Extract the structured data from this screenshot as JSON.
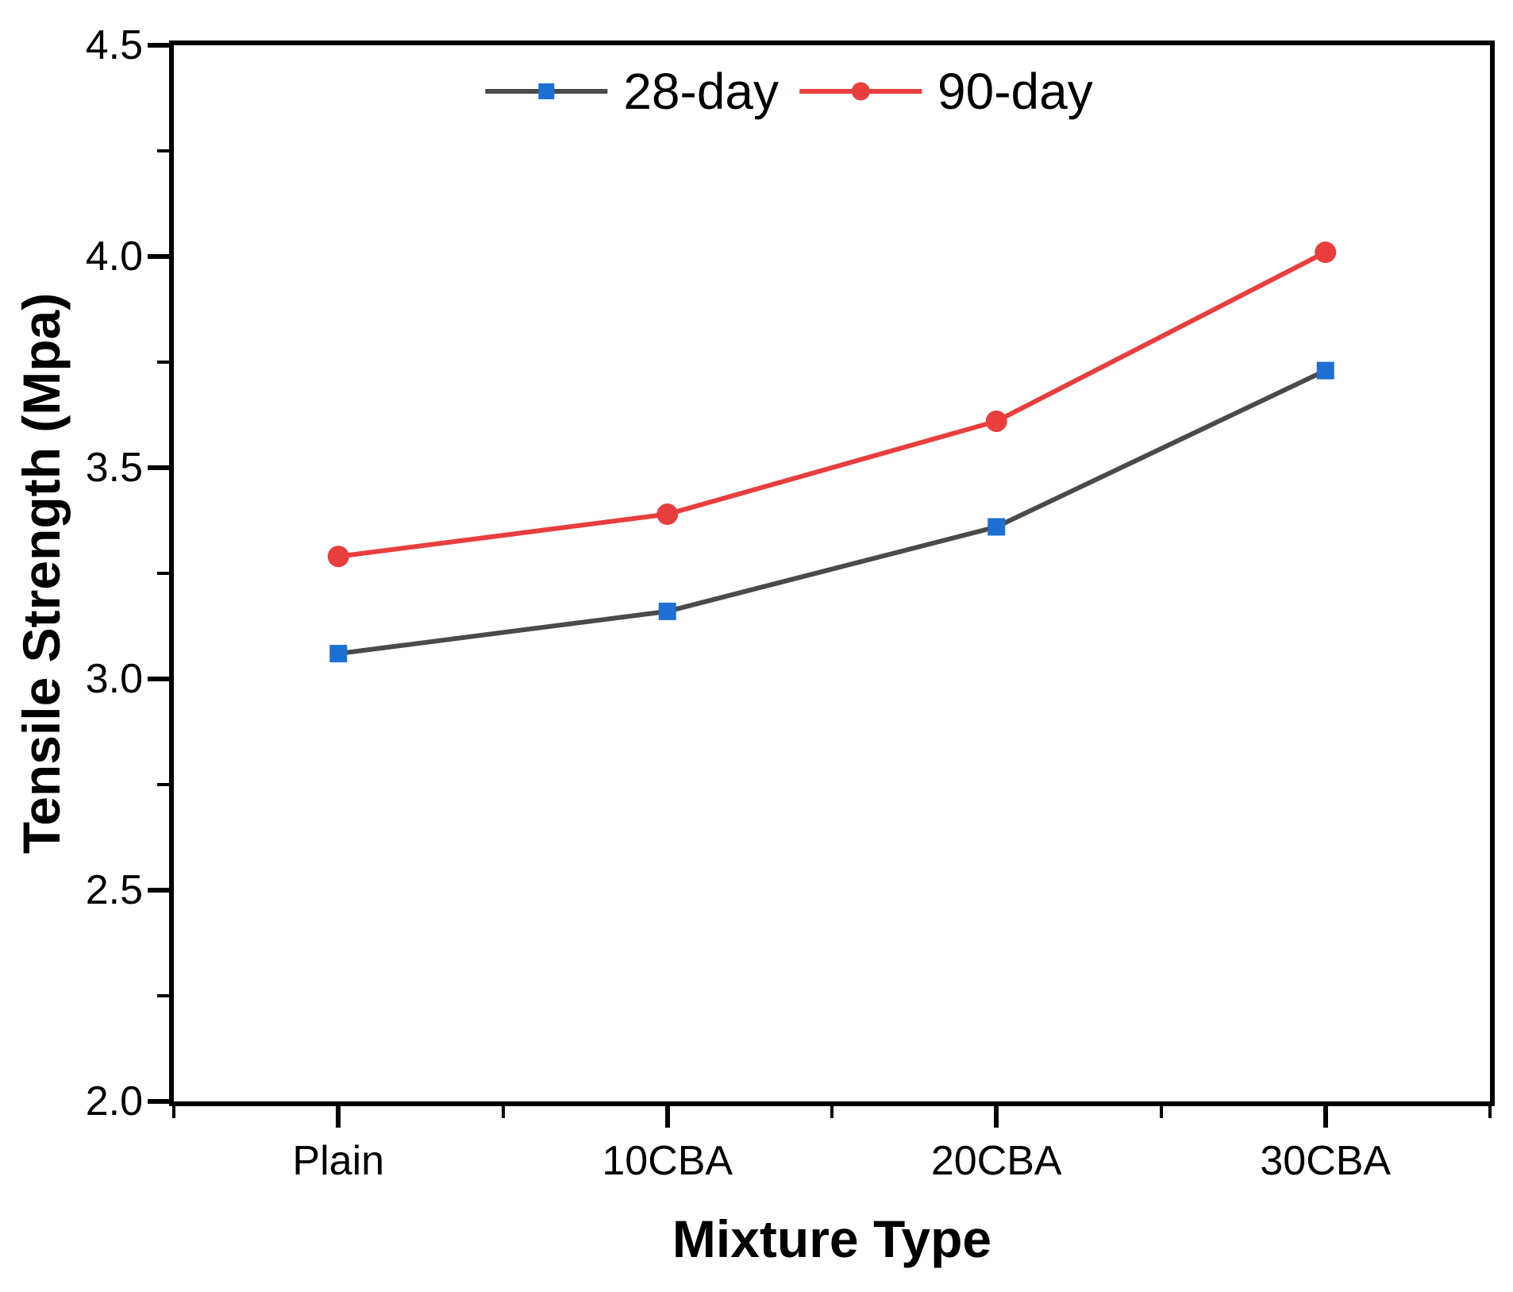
{
  "chart_data": {
    "type": "line",
    "title": "",
    "categories": [
      "Plain",
      "10CBA",
      "20CBA",
      "30CBA"
    ],
    "series": [
      {
        "name": "28-day",
        "values": [
          3.06,
          3.16,
          3.36,
          3.73
        ],
        "line_color": "#4a4a4a",
        "marker": "square",
        "marker_color": "#1d70d2"
      },
      {
        "name": "90-day",
        "values": [
          3.29,
          3.39,
          3.61,
          4.01
        ],
        "line_color": "#e83e3e",
        "marker": "circle",
        "marker_color": "#e83e3e"
      }
    ],
    "xlabel": "Mixture Type",
    "ylabel": "Tensile Strength (Mpa)",
    "ylim": [
      2.0,
      4.5
    ],
    "yticks": [
      2.0,
      2.5,
      3.0,
      3.5,
      4.0,
      4.5
    ],
    "ytick_labels": [
      "2.0",
      "2.5",
      "3.0",
      "3.5",
      "4.0",
      "4.5"
    ],
    "yminor_ticks": [
      2.25,
      2.75,
      3.25,
      3.75,
      4.25
    ],
    "axis_color": "#000000",
    "grid": false,
    "frame": true,
    "legend_position": "top-center"
  }
}
